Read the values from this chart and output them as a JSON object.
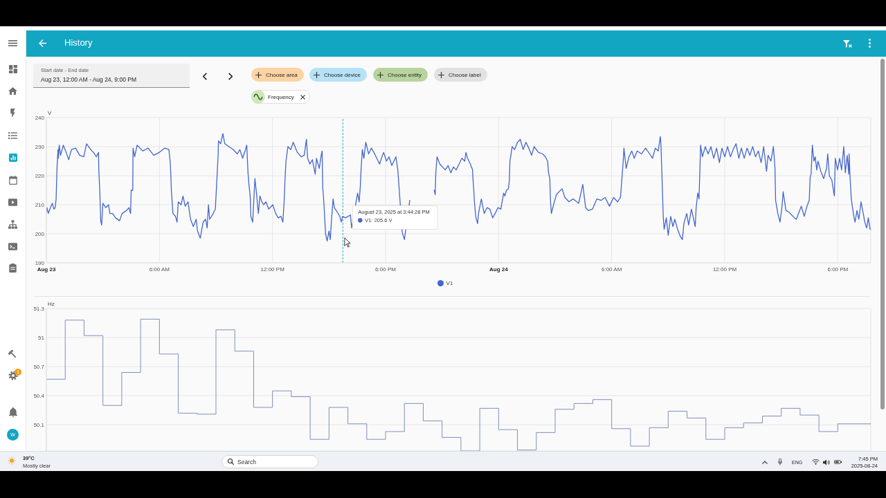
{
  "chart_data": [
    {
      "type": "other",
      "title": "History",
      "annotations": [
        "Start date - End date",
        "Aug 23, 12:00 AM - Aug 24, 9:00 PM",
        "Choose area",
        "Choose device",
        "Choose entity",
        "Choose label",
        "Frequency",
        "1",
        "W"
      ]
    },
    {
      "type": "line",
      "ylabel": "V",
      "x": [
        "2025-08-23T00:00",
        "2025-08-23T00:02",
        "2025-08-23T00:06",
        "2025-08-23T00:15",
        "2025-08-23T00:19",
        "2025-08-23T00:24",
        "2025-08-23T00:28",
        "2025-08-23T00:31",
        "2025-08-23T00:34",
        "2025-08-23T00:37",
        "2025-08-23T00:38",
        "2025-08-23T00:41",
        "2025-08-23T00:45",
        "2025-08-23T00:54",
        "2025-08-23T01:03",
        "2025-08-23T01:11",
        "2025-08-23T01:20",
        "2025-08-23T01:33",
        "2025-08-23T01:46",
        "2025-08-23T01:59",
        "2025-08-23T02:08",
        "2025-08-23T02:21",
        "2025-08-23T02:30",
        "2025-08-23T02:39",
        "2025-08-23T02:46",
        "2025-08-23T02:47",
        "2025-08-23T02:50",
        "2025-08-23T02:53",
        "2025-08-23T02:56",
        "2025-08-23T03:00",
        "2025-08-23T03:09",
        "2025-08-23T03:18",
        "2025-08-23T03:22",
        "2025-08-23T03:31",
        "2025-08-23T03:40",
        "2025-08-23T03:53",
        "2025-08-23T04:01",
        "2025-08-23T04:15",
        "2025-08-23T04:23",
        "2025-08-23T04:28",
        "2025-08-23T04:30",
        "2025-08-23T04:35",
        "2025-08-23T04:36",
        "2025-08-23T04:41",
        "2025-08-23T04:49",
        "2025-08-23T05:07",
        "2025-08-23T05:24",
        "2025-08-23T05:42",
        "2025-08-23T05:59",
        "2025-08-23T06:17",
        "2025-08-23T06:30",
        "2025-08-23T06:34",
        "2025-08-23T06:36",
        "2025-08-23T06:38",
        "2025-08-23T06:43",
        "2025-08-23T06:51",
        "2025-08-23T06:56",
        "2025-08-23T07:00",
        "2025-08-23T07:09",
        "2025-08-23T07:15",
        "2025-08-23T07:22",
        "2025-08-23T07:31",
        "2025-08-23T07:39",
        "2025-08-23T07:48",
        "2025-08-23T07:57",
        "2025-08-23T08:01",
        "2025-08-23T08:10",
        "2025-08-23T08:19",
        "2025-08-23T08:27",
        "2025-08-23T08:32",
        "2025-08-23T08:36",
        "2025-08-23T08:40",
        "2025-08-23T08:49",
        "2025-08-23T08:58",
        "2025-08-23T09:04",
        "2025-08-23T09:07",
        "2025-08-23T09:08",
        "2025-08-23T09:15",
        "2025-08-23T09:22",
        "2025-08-23T09:28",
        "2025-08-23T09:41",
        "2025-08-23T09:55",
        "2025-08-23T10:08",
        "2025-08-23T10:16",
        "2025-08-23T10:25",
        "2025-08-23T10:34",
        "2025-08-23T10:38",
        "2025-08-23T10:42",
        "2025-08-23T10:45",
        "2025-08-23T10:49",
        "2025-08-23T10:51",
        "2025-08-23T10:57",
        "2025-08-23T11:04",
        "2025-08-23T11:09",
        "2025-08-23T11:15",
        "2025-08-23T11:20",
        "2025-08-23T11:26",
        "2025-08-23T11:32",
        "2025-08-23T11:39",
        "2025-08-23T11:48",
        "2025-08-23T12:01",
        "2025-08-23T12:10",
        "2025-08-23T12:18",
        "2025-08-23T12:27",
        "2025-08-23T12:33",
        "2025-08-23T12:37",
        "2025-08-23T12:40",
        "2025-08-23T12:43",
        "2025-08-23T12:49",
        "2025-08-23T12:58",
        "2025-08-23T13:06",
        "2025-08-23T13:19",
        "2025-08-23T13:32",
        "2025-08-23T13:41",
        "2025-08-23T13:48",
        "2025-08-23T13:52",
        "2025-08-23T13:59",
        "2025-08-23T14:07",
        "2025-08-23T14:16",
        "2025-08-23T14:20",
        "2025-08-23T14:29",
        "2025-08-23T14:35",
        "2025-08-23T14:38",
        "2025-08-23T14:40",
        "2025-08-23T14:44",
        "2025-08-23T14:49",
        "2025-08-23T14:54",
        "2025-08-23T15:00",
        "2025-08-23T15:04",
        "2025-08-23T15:08",
        "2025-08-23T15:13",
        "2025-08-23T15:17",
        "2025-08-23T15:26",
        "2025-08-23T15:34",
        "2025-08-23T15:39",
        "2025-08-23T15:43",
        "2025-08-23T15:52",
        "2025-08-23T16:01",
        "2025-08-23T16:08",
        "2025-08-23T16:12",
        "2025-08-23T16:31",
        "2025-08-23T16:36",
        "2025-08-23T16:40",
        "2025-08-23T16:42",
        "2025-08-23T16:46",
        "2025-08-23T16:51",
        "2025-08-23T16:57",
        "2025-08-23T17:06",
        "2025-08-23T17:15",
        "2025-08-23T17:23",
        "2025-08-23T17:32",
        "2025-08-23T17:41",
        "2025-08-23T17:50",
        "2025-08-23T17:54",
        "2025-08-23T18:03",
        "2025-08-23T18:11",
        "2025-08-23T18:20",
        "2025-08-23T18:33",
        "2025-08-23T18:39",
        "2025-08-23T18:43",
        "2025-08-23T18:53",
        "2025-08-23T19:00",
        "2025-08-23T19:17",
        "2025-08-23T19:50",
        "2025-08-23T20:35",
        "2025-08-23T20:38",
        "2025-08-23T20:40",
        "2025-08-23T20:44",
        "2025-08-23T20:53",
        "2025-08-23T21:10",
        "2025-08-23T21:19",
        "2025-08-23T21:28",
        "2025-08-23T21:36",
        "2025-08-23T21:45",
        "2025-08-23T21:54",
        "2025-08-23T22:03",
        "2025-08-23T22:12",
        "2025-08-23T22:16",
        "2025-08-23T22:21",
        "2025-08-23T22:30",
        "2025-08-23T22:37",
        "2025-08-23T22:38",
        "2025-08-23T22:40",
        "2025-08-23T22:43",
        "2025-08-23T22:47",
        "2025-08-23T22:53",
        "2025-08-23T22:56",
        "2025-08-23T23:05",
        "2025-08-23T23:14",
        "2025-08-23T23:23",
        "2025-08-23T23:32",
        "2025-08-23T23:41",
        "2025-08-23T23:49",
        "2025-08-23T23:58",
        "2025-08-24T00:07",
        "2025-08-24T00:16",
        "2025-08-24T00:20",
        "2025-08-24T00:25",
        "2025-08-24T00:31",
        "2025-08-24T00:34",
        "2025-08-24T00:36",
        "2025-08-24T00:39",
        "2025-08-24T00:43",
        "2025-08-24T00:51",
        "2025-08-24T01:00",
        "2025-08-24T01:09",
        "2025-08-24T01:18",
        "2025-08-24T01:27",
        "2025-08-24T01:36",
        "2025-08-24T01:45",
        "2025-08-24T01:53",
        "2025-08-24T02:07",
        "2025-08-24T02:20",
        "2025-08-24T02:29",
        "2025-08-24T02:36",
        "2025-08-24T02:39",
        "2025-08-24T02:43",
        "2025-08-24T02:45",
        "2025-08-24T02:48",
        "2025-08-24T02:55",
        "2025-08-24T03:04",
        "2025-08-24T03:22",
        "2025-08-24T03:31",
        "2025-08-24T03:44",
        "2025-08-24T03:57",
        "2025-08-24T04:15",
        "2025-08-24T04:28",
        "2025-08-24T04:37",
        "2025-08-24T04:46",
        "2025-08-24T04:59",
        "2025-08-24T05:13",
        "2025-08-24T05:26",
        "2025-08-24T05:39",
        "2025-08-24T05:53",
        "2025-08-24T06:06",
        "2025-08-24T06:19",
        "2025-08-24T06:28",
        "2025-08-24T06:33",
        "2025-08-24T06:37",
        "2025-08-24T06:39",
        "2025-08-24T06:46",
        "2025-08-24T06:55",
        "2025-08-24T07:04",
        "2025-08-24T07:12",
        "2025-08-24T07:21",
        "2025-08-24T07:35",
        "2025-08-24T07:48",
        "2025-08-24T08:01",
        "2025-08-24T08:10",
        "2025-08-24T08:19",
        "2025-08-24T08:28",
        "2025-08-24T08:35",
        "2025-08-24T08:37",
        "2025-08-24T08:41",
        "2025-08-24T08:44",
        "2025-08-24T08:47",
        "2025-08-24T08:54",
        "2025-08-24T09:00",
        "2025-08-24T09:08",
        "2025-08-24T09:15",
        "2025-08-24T09:21",
        "2025-08-24T09:30",
        "2025-08-24T09:39",
        "2025-08-24T09:45",
        "2025-08-24T09:50",
        "2025-08-24T09:59",
        "2025-08-24T10:05",
        "2025-08-24T10:14",
        "2025-08-24T10:26",
        "2025-08-24T10:29",
        "2025-08-24T10:34",
        "2025-08-24T10:38",
        "2025-08-24T10:41",
        "2025-08-24T10:43",
        "2025-08-24T10:49",
        "2025-08-24T10:58",
        "2025-08-24T11:07",
        "2025-08-24T11:16",
        "2025-08-24T11:25",
        "2025-08-24T11:34",
        "2025-08-24T11:43",
        "2025-08-24T11:51",
        "2025-08-24T12:00",
        "2025-08-24T12:09",
        "2025-08-24T12:18",
        "2025-08-24T12:27",
        "2025-08-24T12:36",
        "2025-08-24T12:45",
        "2025-08-24T12:53",
        "2025-08-24T13:02",
        "2025-08-24T13:11",
        "2025-08-24T13:20",
        "2025-08-24T13:29",
        "2025-08-24T13:38",
        "2025-08-24T13:47",
        "2025-08-24T13:56",
        "2025-08-24T14:04",
        "2025-08-24T14:13",
        "2025-08-24T14:18",
        "2025-08-24T14:27",
        "2025-08-24T14:35",
        "2025-08-24T14:40",
        "2025-08-24T14:42",
        "2025-08-24T14:49",
        "2025-08-24T14:56",
        "2025-08-24T15:02",
        "2025-08-24T15:06",
        "2025-08-24T15:15",
        "2025-08-24T15:24",
        "2025-08-24T15:33",
        "2025-08-24T15:42",
        "2025-08-24T15:48",
        "2025-08-24T15:55",
        "2025-08-24T16:04",
        "2025-08-24T16:13",
        "2025-08-24T16:22",
        "2025-08-24T16:29",
        "2025-08-24T16:32",
        "2025-08-24T16:35",
        "2025-08-24T16:39",
        "2025-08-24T16:44",
        "2025-08-24T16:48",
        "2025-08-24T16:53",
        "2025-08-24T16:57",
        "2025-08-24T17:06",
        "2025-08-24T17:15",
        "2025-08-24T17:24",
        "2025-08-24T17:28",
        "2025-08-24T17:33",
        "2025-08-24T17:41",
        "2025-08-24T17:49",
        "2025-08-24T17:52",
        "2025-08-24T17:59",
        "2025-08-24T18:06",
        "2025-08-24T18:12",
        "2025-08-24T18:19",
        "2025-08-24T18:24",
        "2025-08-24T18:30",
        "2025-08-24T18:35",
        "2025-08-24T18:36",
        "2025-08-24T18:39",
        "2025-08-24T18:43",
        "2025-08-24T18:51",
        "2025-08-24T18:55",
        "2025-08-24T19:01",
        "2025-08-24T19:07",
        "2025-08-24T19:14",
        "2025-08-24T19:21",
        "2025-08-24T19:26",
        "2025-08-24T19:32",
        "2025-08-24T19:37",
        "2025-08-24T19:43",
        "2025-08-24T19:45"
      ],
      "series": [
        {
          "name": "V1",
          "color": "#4465cf",
          "values": [
            207.5,
            209,
            207,
            209.5,
            210.5,
            208.5,
            209,
            212,
            223,
            229,
            226,
            230.5,
            227,
            230.5,
            228,
            225.5,
            229,
            229.5,
            227,
            226.5,
            231,
            229,
            228,
            226.5,
            228,
            222,
            215,
            204.5,
            203,
            210.5,
            209,
            210,
            207,
            207,
            205.5,
            204.5,
            207,
            208,
            209,
            207,
            215,
            215,
            229.5,
            226.5,
            230.5,
            228.5,
            229.5,
            227,
            228,
            229.5,
            229,
            225,
            221,
            215,
            207,
            206,
            204,
            211,
            210,
            213,
            209.5,
            211,
            205,
            202.5,
            205,
            201,
            198.5,
            204,
            205,
            202,
            210,
            205,
            206.5,
            208.5,
            221,
            227.5,
            232,
            231,
            234.5,
            231,
            230,
            229,
            227.5,
            229,
            226,
            229,
            230.5,
            221,
            217,
            213,
            206,
            204,
            219,
            214,
            207,
            213,
            211,
            210,
            211,
            208.5,
            210,
            207,
            205.5,
            206,
            204,
            211,
            219,
            225,
            230,
            229,
            231.5,
            228,
            226.5,
            227,
            232.5,
            226,
            224,
            225.5,
            220.5,
            226,
            222.5,
            227,
            228.5,
            216,
            210,
            200,
            197.5,
            201,
            198,
            205,
            212,
            209,
            207.5,
            206,
            204,
            206,
            205.5,
            206,
            206.5,
            202,
            214,
            211,
            217,
            222,
            229,
            226,
            231.5,
            227.5,
            229.5,
            228,
            226,
            224,
            227,
            228,
            225,
            226.5,
            223.5,
            226.5,
            222,
            216,
            200.5,
            198,
            211.5,
            null,
            215,
            213.5,
            221,
            226.5,
            224,
            222,
            223.5,
            221,
            223,
            222,
            224,
            226,
            225,
            228,
            226,
            224,
            222,
            219.5,
            216.5,
            211,
            206,
            203.5,
            207,
            212,
            207,
            209,
            208.5,
            205.5,
            207,
            209,
            208.5,
            214,
            213,
            215,
            215.5,
            218,
            225,
            227,
            230,
            229,
            231.5,
            232.5,
            229,
            231.5,
            229.5,
            227,
            230,
            228,
            227.5,
            226.5,
            225,
            221,
            219,
            211.5,
            207,
            210,
            213.5,
            215.5,
            212.5,
            211,
            212,
            210.5,
            217,
            209,
            208,
            208.5,
            212,
            211.5,
            212.5,
            209.5,
            212.5,
            211,
            212.5,
            219.5,
            225.5,
            229.5,
            222.5,
            226.5,
            228.5,
            226,
            228.5,
            227.5,
            229.5,
            227.5,
            226,
            229.5,
            228.5,
            233.5,
            230.5,
            217,
            206.5,
            201.5,
            205.5,
            199.5,
            206,
            202.5,
            205,
            201.5,
            199,
            198,
            203.5,
            207,
            203,
            208.5,
            202.5,
            209,
            214,
            212,
            222,
            230.5,
            226.5,
            230,
            227.5,
            230,
            226,
            229.5,
            224.5,
            229.5,
            226.5,
            230,
            226.5,
            229,
            231,
            226,
            229.5,
            226,
            229.5,
            227,
            230,
            226.5,
            228.5,
            224.5,
            230,
            221.5,
            227,
            225,
            230,
            222.5,
            211.5,
            207,
            204,
            209,
            214.5,
            208,
            207.5,
            206.5,
            205.5,
            205,
            207,
            209.5,
            206,
            209.5,
            211.5,
            219.5,
            220.5,
            230.5,
            225,
            226.5,
            222,
            225,
            221.5,
            219,
            222.5,
            227.5,
            220,
            218.5,
            213,
            226,
            222,
            226,
            222,
            230,
            221,
            227,
            220.5,
            227.5,
            219.5,
            212,
            206,
            204,
            208,
            205,
            211,
            207,
            204,
            202,
            205.5,
            201.5,
            201.5
          ]
        }
      ],
      "xlim": [
        "2025-08-23T00:00",
        "2025-08-24T19:45"
      ],
      "xticks": [
        {
          "value": "2025-08-23T00:00",
          "label": "Aug 23"
        },
        {
          "value": "2025-08-23T06:00",
          "label": "6:00 AM"
        },
        {
          "value": "2025-08-23T12:00",
          "label": "12:00 PM"
        },
        {
          "value": "2025-08-23T18:00",
          "label": "6:00 PM"
        },
        {
          "value": "2025-08-24T00:00",
          "label": "Aug 24"
        },
        {
          "value": "2025-08-24T06:00",
          "label": "6:00 AM"
        },
        {
          "value": "2025-08-24T12:00",
          "label": "12:00 PM"
        },
        {
          "value": "2025-08-24T18:00",
          "label": "6:00 PM"
        }
      ],
      "ylim": [
        190,
        240
      ],
      "yticks": [
        190,
        200,
        210,
        220,
        230,
        240
      ],
      "grid": true,
      "legend": "bottom",
      "annotations": [
        {
          "text": "August 23, 2025 at 3:44:28 PM\nV1: 205.6 V",
          "x": "2025-08-23T15:44",
          "y": 205.6
        }
      ],
      "ref_lines": [
        {
          "axis": "x",
          "value": "2025-08-23T15:44",
          "color": "#29a9c8",
          "line_style": "dashed"
        }
      ]
    },
    {
      "type": "step",
      "ylabel": "Hz",
      "x": [
        "2025-08-23T00:00",
        "2025-08-23T01:00",
        "2025-08-23T02:00",
        "2025-08-23T03:00",
        "2025-08-23T04:00",
        "2025-08-23T05:00",
        "2025-08-23T06:00",
        "2025-08-23T07:00",
        "2025-08-23T08:00",
        "2025-08-23T09:00",
        "2025-08-23T10:00",
        "2025-08-23T11:00",
        "2025-08-23T12:00",
        "2025-08-23T13:00",
        "2025-08-23T14:00",
        "2025-08-23T15:00",
        "2025-08-23T16:00",
        "2025-08-23T17:00",
        "2025-08-23T18:00",
        "2025-08-23T19:00",
        "2025-08-23T20:00",
        "2025-08-23T21:00",
        "2025-08-23T22:00",
        "2025-08-23T23:00",
        "2025-08-24T00:00",
        "2025-08-24T01:00",
        "2025-08-24T02:00",
        "2025-08-24T03:00",
        "2025-08-24T04:00",
        "2025-08-24T05:00",
        "2025-08-24T06:00",
        "2025-08-24T07:00",
        "2025-08-24T08:00",
        "2025-08-24T09:00",
        "2025-08-24T10:00",
        "2025-08-24T11:00",
        "2025-08-24T12:00",
        "2025-08-24T13:00",
        "2025-08-24T14:00",
        "2025-08-24T15:00",
        "2025-08-24T16:00",
        "2025-08-24T17:00",
        "2025-08-24T18:00",
        "2025-08-24T19:45"
      ],
      "values": [
        50.57,
        51.18,
        51.02,
        50.3,
        50.64,
        51.19,
        50.83,
        50.22,
        50.21,
        51.08,
        50.86,
        50.28,
        50.45,
        50.39,
        49.95,
        50.28,
        50.11,
        49.95,
        50.03,
        50.32,
        50.14,
        49.97,
        49.83,
        50.27,
        50.05,
        49.84,
        50.02,
        50.26,
        50.32,
        50.36,
        50.06,
        49.88,
        50.07,
        50.24,
        50.17,
        49.95,
        50.07,
        50.12,
        50.19,
        50.27,
        50.2,
        50.03,
        50.11,
        50.11
      ],
      "color": "#7f8fbf",
      "xlim": [
        "2025-08-23T00:00",
        "2025-08-24T19:45"
      ],
      "xticks": [
        {
          "value": "2025-08-23T00:00",
          "label": null
        },
        {
          "value": "2025-08-23T06:00",
          "label": null
        },
        {
          "value": "2025-08-23T12:00",
          "label": null
        },
        {
          "value": "2025-08-23T18:00",
          "label": null
        },
        {
          "value": "2025-08-24T00:00",
          "label": null
        },
        {
          "value": "2025-08-24T06:00",
          "label": null
        },
        {
          "value": "2025-08-24T12:00",
          "label": null
        },
        {
          "value": "2025-08-24T18:00",
          "label": null
        }
      ],
      "ylim": [
        49.83,
        51.3
      ],
      "yticks": [
        50.1,
        50.4,
        50.7,
        51,
        51.3
      ],
      "grid": true,
      "tick_labels": "y"
    },
    {
      "type": "other",
      "annotations": [
        "39°C",
        "Mostly clear",
        "Search",
        "ENG",
        "7:45 PM",
        "2025-08-24"
      ]
    }
  ]
}
